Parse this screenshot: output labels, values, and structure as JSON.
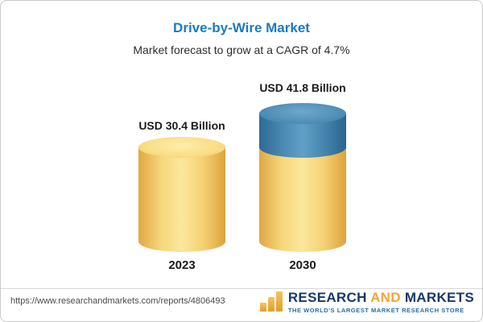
{
  "header": {
    "title": "Drive-by-Wire Market",
    "subtitle": "Market forecast to grow at a CAGR of 4.7%"
  },
  "chart_data": {
    "type": "bar",
    "title": "Drive-by-Wire Market",
    "subtitle": "Market forecast to grow at a CAGR of 4.7%",
    "categories": [
      "2023",
      "2030"
    ],
    "values": [
      30.4,
      41.8
    ],
    "value_labels": [
      "USD 30.4 Billion",
      "USD 41.8 Billion"
    ],
    "unit": "USD Billion",
    "cagr": "4.7%",
    "ylim": [
      0,
      45
    ],
    "grid": "off",
    "axes": "hidden",
    "bar_style": "3d-cylinder",
    "colors": {
      "bar_yellow": "#f3cd6b",
      "bar_blue_segment": "#4d8db6",
      "title_blue": "#1a7abf"
    },
    "notes": "2030 bar is yellow with a blue top segment representing growth above the 2023 value"
  },
  "footer": {
    "url": "https://www.researchandmarkets.com/reports/4806493",
    "logo": {
      "research": "RESEARCH",
      "and": "AND",
      "markets": "MARKETS",
      "tagline": "THE WORLD'S LARGEST MARKET RESEARCH STORE"
    }
  }
}
